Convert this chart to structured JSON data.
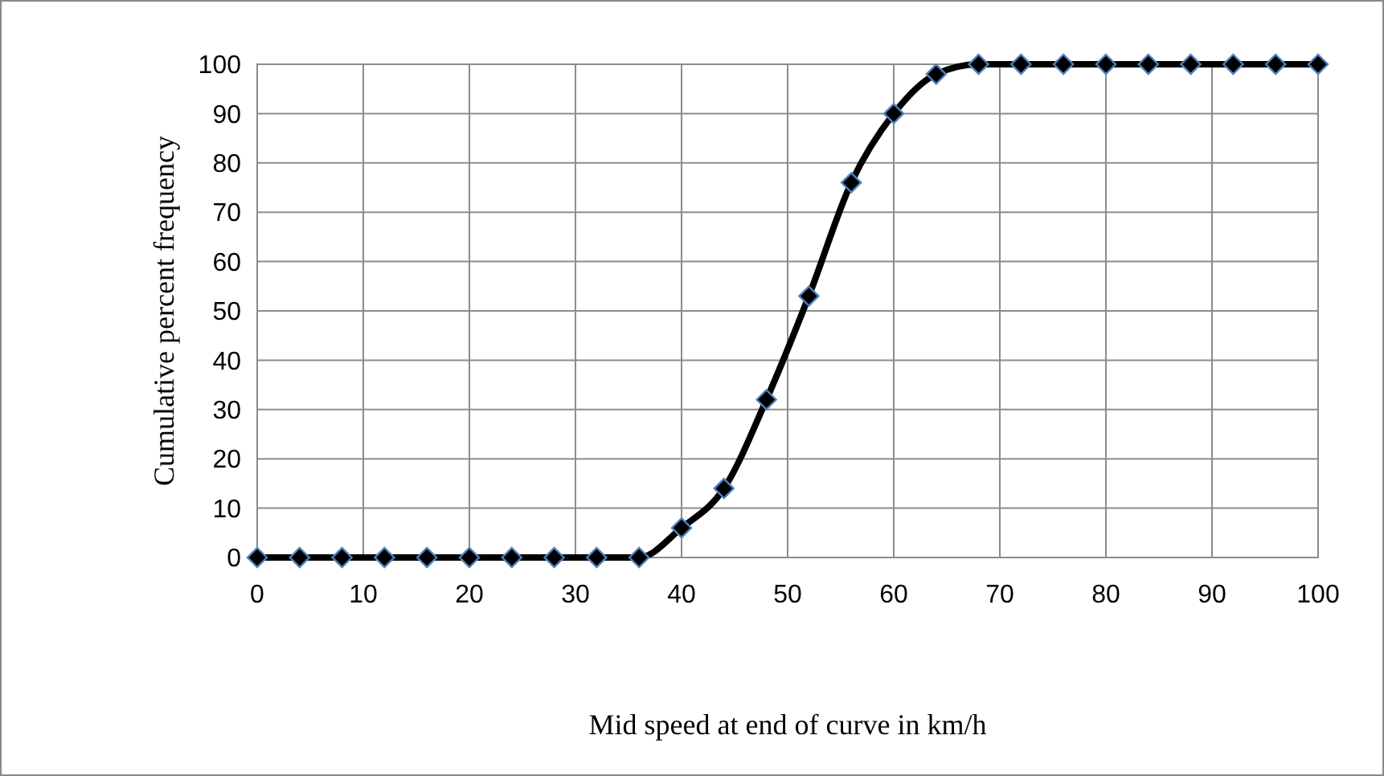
{
  "chart_data": {
    "type": "line",
    "xlabel": "Mid speed at end of curve  in km/h",
    "ylabel": "Cumulative percent  frequency",
    "x": [
      0,
      4,
      8,
      12,
      16,
      20,
      24,
      28,
      32,
      36,
      40,
      44,
      48,
      52,
      56,
      60,
      64,
      68,
      72,
      76,
      80,
      84,
      88,
      92,
      96,
      100
    ],
    "series": [
      {
        "color": "#000000",
        "values": [
          0,
          0,
          0,
          0,
          0,
          0,
          0,
          0,
          0,
          0,
          6,
          14,
          32,
          53,
          76,
          90,
          98,
          100,
          100,
          100,
          100,
          100,
          100,
          100,
          100,
          100
        ]
      }
    ],
    "xlim": [
      0,
      100
    ],
    "xticks": [
      0,
      10,
      20,
      30,
      40,
      50,
      60,
      70,
      80,
      90,
      100
    ],
    "ylim": [
      0,
      100
    ],
    "yticks": [
      0,
      10,
      20,
      30,
      40,
      50,
      60,
      70,
      80,
      90,
      100
    ],
    "grid": true,
    "marker": "diamond",
    "line_style": "solid"
  }
}
